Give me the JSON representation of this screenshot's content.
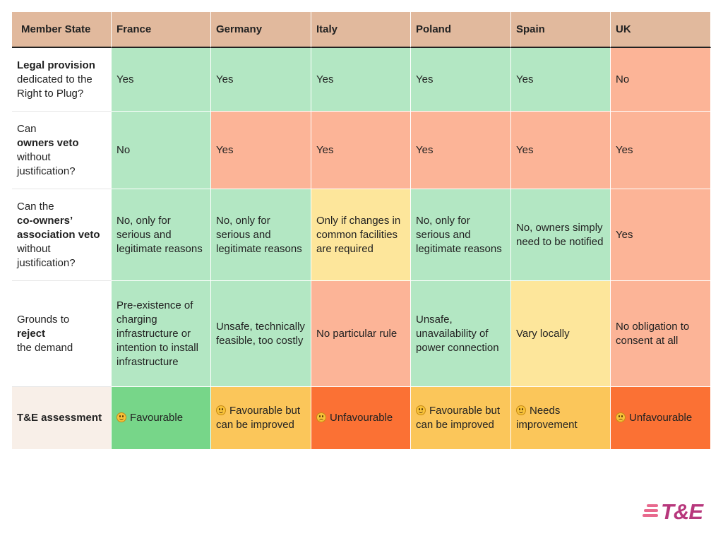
{
  "header": {
    "member_state": "Member State",
    "countries": [
      "France",
      "Germany",
      "Italy",
      "Poland",
      "Spain",
      "UK"
    ]
  },
  "rows": [
    {
      "label_pre": "",
      "label_bold": "Legal provision",
      "label_post": "dedicated to the Right to Plug?",
      "cells": [
        "Yes",
        "Yes",
        "Yes",
        "Yes",
        "Yes",
        "No"
      ],
      "colors": [
        "g",
        "g",
        "g",
        "g",
        "g",
        "r"
      ]
    },
    {
      "label_pre": "Can",
      "label_bold": "owners veto",
      "label_post": "without justification?",
      "cells": [
        "No",
        "Yes",
        "Yes",
        "Yes",
        "Yes",
        "Yes"
      ],
      "colors": [
        "g",
        "r",
        "r",
        "r",
        "r",
        "r"
      ]
    },
    {
      "label_pre": "Can the",
      "label_bold": "co-owners’ association veto",
      "label_post": "without justification?",
      "cells": [
        "No, only for serious and legitimate reasons",
        "No, only for serious and legitimate reasons",
        "Only if changes in common facilities are required",
        "No, only for serious and legitimate reasons",
        "No, owners simply need to be notified",
        "Yes"
      ],
      "colors": [
        "g",
        "g",
        "y",
        "g",
        "g",
        "r"
      ]
    },
    {
      "label_pre": "Grounds to",
      "label_bold": "reject",
      "label_post": "the demand",
      "cells": [
        "Pre-existence of charging infrastructure or intention to install infrastructure",
        "Unsafe, technically feasible, too costly",
        "No particular rule",
        "Unsafe, unavailability of power connection",
        "Vary locally",
        "No obligation to consent at all"
      ],
      "colors": [
        "g",
        "g",
        "r",
        "g",
        "y",
        "r"
      ]
    }
  ],
  "assessment": {
    "label": "T&E assessment",
    "cells": [
      {
        "text": "Favourable",
        "icon": "smile-emoji-icon",
        "color": "#77d689"
      },
      {
        "text": "Favourable but can be improved",
        "icon": "smile-emoji-icon",
        "color": "#fbc65a"
      },
      {
        "text": "Unfavourable",
        "icon": "sad-emoji-icon",
        "color": "#fb7134"
      },
      {
        "text": "Favourable but can be improved",
        "icon": "smile-emoji-icon",
        "color": "#fbc65a"
      },
      {
        "text": "Needs improvement",
        "icon": "smile-emoji-icon",
        "color": "#fbc65a"
      },
      {
        "text": "Unfavourable",
        "icon": "sad-emoji-icon",
        "color": "#fb7134"
      }
    ]
  },
  "colors": {
    "header_bg": "#e1b99d",
    "green": "#b3e7c3",
    "red": "#fcb497",
    "yellow": "#fde69b",
    "logo": "#b7377c"
  },
  "logo": {
    "text": "T&E"
  }
}
